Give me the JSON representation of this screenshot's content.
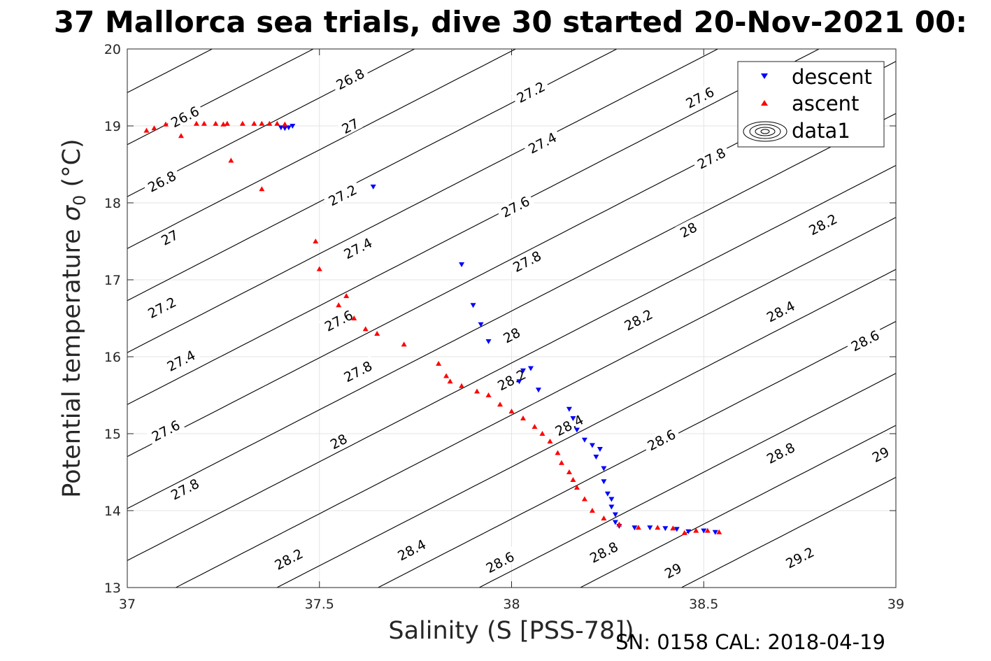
{
  "figure": {
    "title": "37 Mallorca sea trials, dive 30 started 20-Nov-2021 00:",
    "footer": "SN: 0158  CAL: 2018-04-19"
  },
  "chart_data": {
    "type": "scatter",
    "xlabel": "Salinity (S [PSS-78])",
    "ylabel_prefix": "Potential temperature ",
    "ylabel_symbol": "σ",
    "ylabel_subscript": "0",
    "ylabel_suffix": " (°C)",
    "xlim": [
      37,
      39
    ],
    "ylim": [
      13,
      20
    ],
    "xticks": [
      37,
      37.5,
      38,
      38.5,
      39
    ],
    "xtick_labels": [
      "37",
      "37.5",
      "38",
      "38.5",
      "39"
    ],
    "yticks": [
      13,
      14,
      15,
      16,
      17,
      18,
      19,
      20
    ],
    "ytick_labels": [
      "13",
      "14",
      "15",
      "16",
      "17",
      "18",
      "19",
      "20"
    ],
    "grid": true,
    "legend_position": "top-right",
    "legend": [
      "descent",
      "ascent",
      "data1"
    ],
    "series": [
      {
        "name": "descent",
        "marker": "triangle-down",
        "color": "#0000ff",
        "points": [
          [
            37.4,
            18.98
          ],
          [
            37.41,
            18.97
          ],
          [
            37.42,
            18.98
          ],
          [
            37.43,
            19.0
          ],
          [
            37.64,
            18.21
          ],
          [
            37.87,
            17.2
          ],
          [
            37.9,
            16.67
          ],
          [
            37.92,
            16.42
          ],
          [
            37.94,
            16.2
          ],
          [
            38.02,
            15.68
          ],
          [
            38.03,
            15.82
          ],
          [
            38.05,
            15.85
          ],
          [
            38.07,
            15.57
          ],
          [
            38.15,
            15.32
          ],
          [
            38.16,
            15.2
          ],
          [
            38.17,
            15.05
          ],
          [
            38.19,
            14.92
          ],
          [
            38.21,
            14.85
          ],
          [
            38.22,
            14.7
          ],
          [
            38.23,
            14.8
          ],
          [
            38.24,
            14.55
          ],
          [
            38.24,
            14.38
          ],
          [
            38.25,
            14.22
          ],
          [
            38.26,
            14.15
          ],
          [
            38.26,
            14.05
          ],
          [
            38.27,
            13.95
          ],
          [
            38.27,
            13.85
          ],
          [
            38.28,
            13.8
          ],
          [
            38.32,
            13.78
          ],
          [
            38.36,
            13.78
          ],
          [
            38.4,
            13.77
          ],
          [
            38.43,
            13.76
          ],
          [
            38.46,
            13.73
          ],
          [
            38.5,
            13.74
          ],
          [
            38.53,
            13.72
          ]
        ]
      },
      {
        "name": "ascent",
        "marker": "triangle-up",
        "color": "#ff0000",
        "points": [
          [
            37.05,
            18.94
          ],
          [
            37.07,
            18.97
          ],
          [
            37.1,
            19.02
          ],
          [
            37.14,
            18.87
          ],
          [
            37.18,
            19.03
          ],
          [
            37.2,
            19.03
          ],
          [
            37.23,
            19.03
          ],
          [
            37.25,
            19.02
          ],
          [
            37.26,
            19.03
          ],
          [
            37.27,
            18.55
          ],
          [
            37.3,
            19.03
          ],
          [
            37.33,
            19.03
          ],
          [
            37.35,
            19.03
          ],
          [
            37.37,
            19.03
          ],
          [
            37.39,
            19.03
          ],
          [
            37.41,
            19.02
          ],
          [
            37.35,
            18.18
          ],
          [
            37.49,
            17.5
          ],
          [
            37.5,
            17.14
          ],
          [
            37.55,
            16.67
          ],
          [
            37.57,
            16.79
          ],
          [
            37.59,
            16.5
          ],
          [
            37.62,
            16.36
          ],
          [
            37.65,
            16.3
          ],
          [
            37.72,
            16.16
          ],
          [
            37.81,
            15.91
          ],
          [
            37.83,
            15.75
          ],
          [
            37.84,
            15.68
          ],
          [
            37.87,
            15.62
          ],
          [
            37.91,
            15.55
          ],
          [
            37.94,
            15.5
          ],
          [
            37.97,
            15.38
          ],
          [
            38.0,
            15.29
          ],
          [
            38.03,
            15.2
          ],
          [
            38.06,
            15.09
          ],
          [
            38.08,
            15.0
          ],
          [
            38.1,
            14.9
          ],
          [
            38.12,
            14.75
          ],
          [
            38.13,
            14.62
          ],
          [
            38.15,
            14.5
          ],
          [
            38.16,
            14.4
          ],
          [
            38.17,
            14.3
          ],
          [
            38.19,
            14.15
          ],
          [
            38.21,
            14.0
          ],
          [
            38.24,
            13.9
          ],
          [
            38.28,
            13.82
          ],
          [
            38.33,
            13.78
          ],
          [
            38.38,
            13.78
          ],
          [
            38.42,
            13.77
          ],
          [
            38.45,
            13.71
          ],
          [
            38.48,
            13.74
          ],
          [
            38.51,
            13.74
          ],
          [
            38.54,
            13.72
          ]
        ]
      },
      {
        "name": "data1",
        "type": "contour",
        "color": "#000000",
        "levels": [
          26.2,
          26.4,
          26.6,
          26.8,
          27,
          27.2,
          27.4,
          27.6,
          27.8,
          28,
          28.2,
          28.4,
          28.6,
          28.8,
          29,
          29.2,
          29.4
        ]
      }
    ],
    "contour_labels": [
      {
        "text": "26.6",
        "s": 37.15,
        "t": 19.12
      },
      {
        "text": "26.8",
        "s": 37.58,
        "t": 19.61
      },
      {
        "text": "27.2",
        "s": 38.05,
        "t": 19.44
      },
      {
        "text": "27.6",
        "s": 38.49,
        "t": 19.37
      },
      {
        "text": "27",
        "s": 37.58,
        "t": 19.0
      },
      {
        "text": "27.4",
        "s": 38.08,
        "t": 18.78
      },
      {
        "text": "27.8",
        "s": 38.52,
        "t": 18.58
      },
      {
        "text": "26.8",
        "s": 37.09,
        "t": 18.28
      },
      {
        "text": "27.2",
        "s": 37.56,
        "t": 18.1
      },
      {
        "text": "27.6",
        "s": 38.01,
        "t": 17.95
      },
      {
        "text": "28",
        "s": 38.46,
        "t": 17.65
      },
      {
        "text": "28.2",
        "s": 38.81,
        "t": 17.72
      },
      {
        "text": "27",
        "s": 37.11,
        "t": 17.55
      },
      {
        "text": "27.4",
        "s": 37.6,
        "t": 17.41
      },
      {
        "text": "27.8",
        "s": 38.04,
        "t": 17.24
      },
      {
        "text": "27.2",
        "s": 37.09,
        "t": 16.64
      },
      {
        "text": "27.6",
        "s": 37.55,
        "t": 16.47
      },
      {
        "text": "28",
        "s": 38.0,
        "t": 16.28
      },
      {
        "text": "28.2",
        "s": 38.33,
        "t": 16.48
      },
      {
        "text": "28.4",
        "s": 38.7,
        "t": 16.59
      },
      {
        "text": "28.6",
        "s": 38.92,
        "t": 16.21
      },
      {
        "text": "27.4",
        "s": 37.14,
        "t": 15.95
      },
      {
        "text": "27.8",
        "s": 37.6,
        "t": 15.81
      },
      {
        "text": "28.2",
        "s": 38.0,
        "t": 15.7
      },
      {
        "text": "27.6",
        "s": 37.1,
        "t": 15.04
      },
      {
        "text": "28",
        "s": 37.55,
        "t": 14.9
      },
      {
        "text": "28.4",
        "s": 38.15,
        "t": 15.11
      },
      {
        "text": "28.6",
        "s": 38.39,
        "t": 14.92
      },
      {
        "text": "28.8",
        "s": 38.7,
        "t": 14.75
      },
      {
        "text": "29",
        "s": 38.96,
        "t": 14.73
      },
      {
        "text": "27.8",
        "s": 37.15,
        "t": 14.28
      },
      {
        "text": "28.2",
        "s": 37.42,
        "t": 13.37
      },
      {
        "text": "28.4",
        "s": 37.74,
        "t": 13.49
      },
      {
        "text": "28.6",
        "s": 37.97,
        "t": 13.33
      },
      {
        "text": "28.8",
        "s": 38.24,
        "t": 13.46
      },
      {
        "text": "29",
        "s": 38.42,
        "t": 13.22
      },
      {
        "text": "29.2",
        "s": 38.75,
        "t": 13.39
      }
    ]
  }
}
